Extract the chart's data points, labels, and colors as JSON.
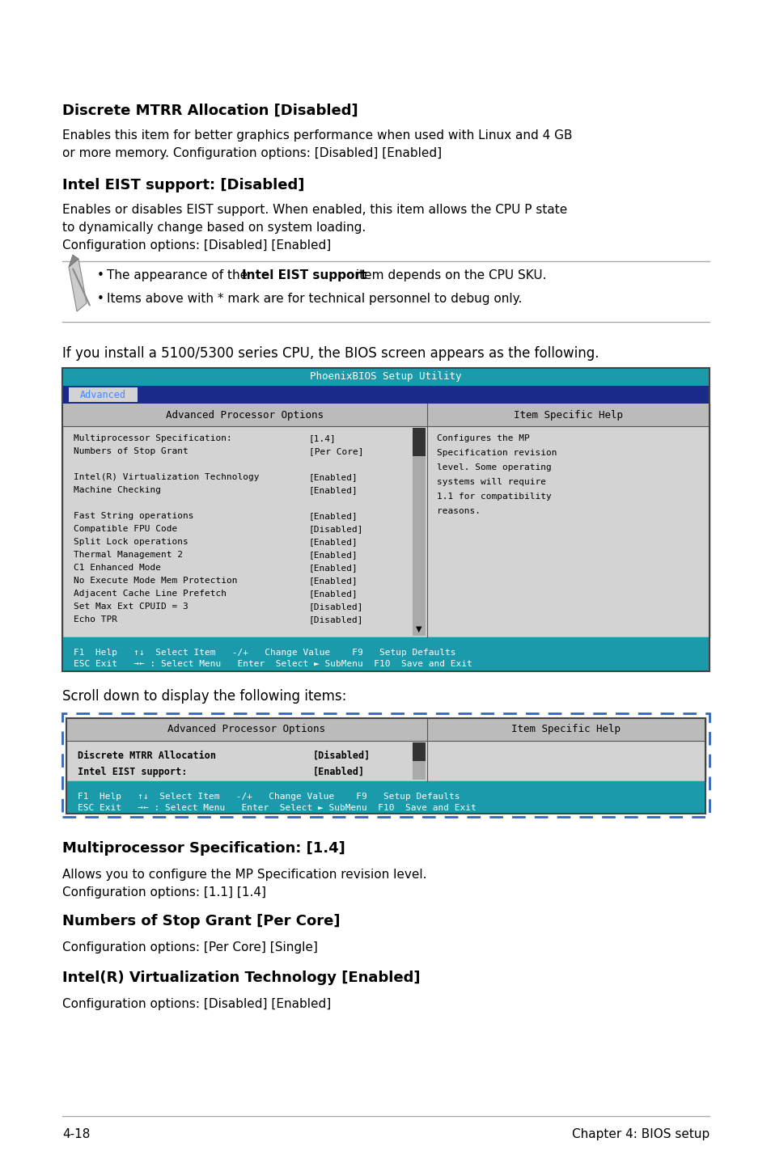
{
  "bg_color": "#ffffff",
  "lm": 0.085,
  "rm": 0.935,
  "title_bar_color": "#1a9aaa",
  "nav_bar_color": "#1a2a8a",
  "content_bg": "#d3d3d3",
  "footer_bar_color": "#1a9aaa",
  "bios1": {
    "title_text": "PhoenixBIOS Setup Utility",
    "nav_text": "Advanced",
    "left_col_header": "Advanced Processor Options",
    "right_col_header": "Item Specific Help",
    "items": [
      [
        "Multiprocessor Specification:",
        "[1.4]"
      ],
      [
        "Numbers of Stop Grant",
        "[Per Core]"
      ],
      [
        "",
        ""
      ],
      [
        "Intel(R) Virtualization Technology",
        "[Enabled]"
      ],
      [
        "Machine Checking",
        "[Enabled]"
      ],
      [
        "",
        ""
      ],
      [
        "Fast String operations",
        "[Enabled]"
      ],
      [
        "Compatible FPU Code",
        "[Disabled]"
      ],
      [
        "Split Lock operations",
        "[Enabled]"
      ],
      [
        "Thermal Management 2",
        "[Enabled]"
      ],
      [
        "C1 Enhanced Mode",
        "[Enabled]"
      ],
      [
        "No Execute Mode Mem Protection",
        "[Enabled]"
      ],
      [
        "Adjacent Cache Line Prefetch",
        "[Enabled]"
      ],
      [
        "Set Max Ext CPUID = 3",
        "[Disabled]"
      ],
      [
        "Echo TPR",
        "[Disabled]"
      ]
    ],
    "help_text": [
      "Configures the MP",
      "Specification revision",
      "level. Some operating",
      "systems will require",
      "1.1 for compatibility",
      "reasons."
    ],
    "footer_line1": "F1  Help   ↑↓  Select Item   -/+   Change Value    F9   Setup Defaults",
    "footer_line2": "ESC Exit   →← : Select Menu   Enter  Select ► SubMenu  F10  Save and Exit"
  },
  "bios2": {
    "left_col_header": "Advanced Processor Options",
    "right_col_header": "Item Specific Help",
    "items": [
      [
        "Discrete MTRR Allocation",
        "[Disabled]"
      ],
      [
        "Intel EIST support:",
        "[Enabled]"
      ]
    ],
    "footer_line1": "F1  Help   ↑↓  Select Item   -/+   Change Value    F9   Setup Defaults",
    "footer_line2": "ESC Exit   →← : Select Menu   Enter  Select ► SubMenu  F10  Save and Exit"
  }
}
